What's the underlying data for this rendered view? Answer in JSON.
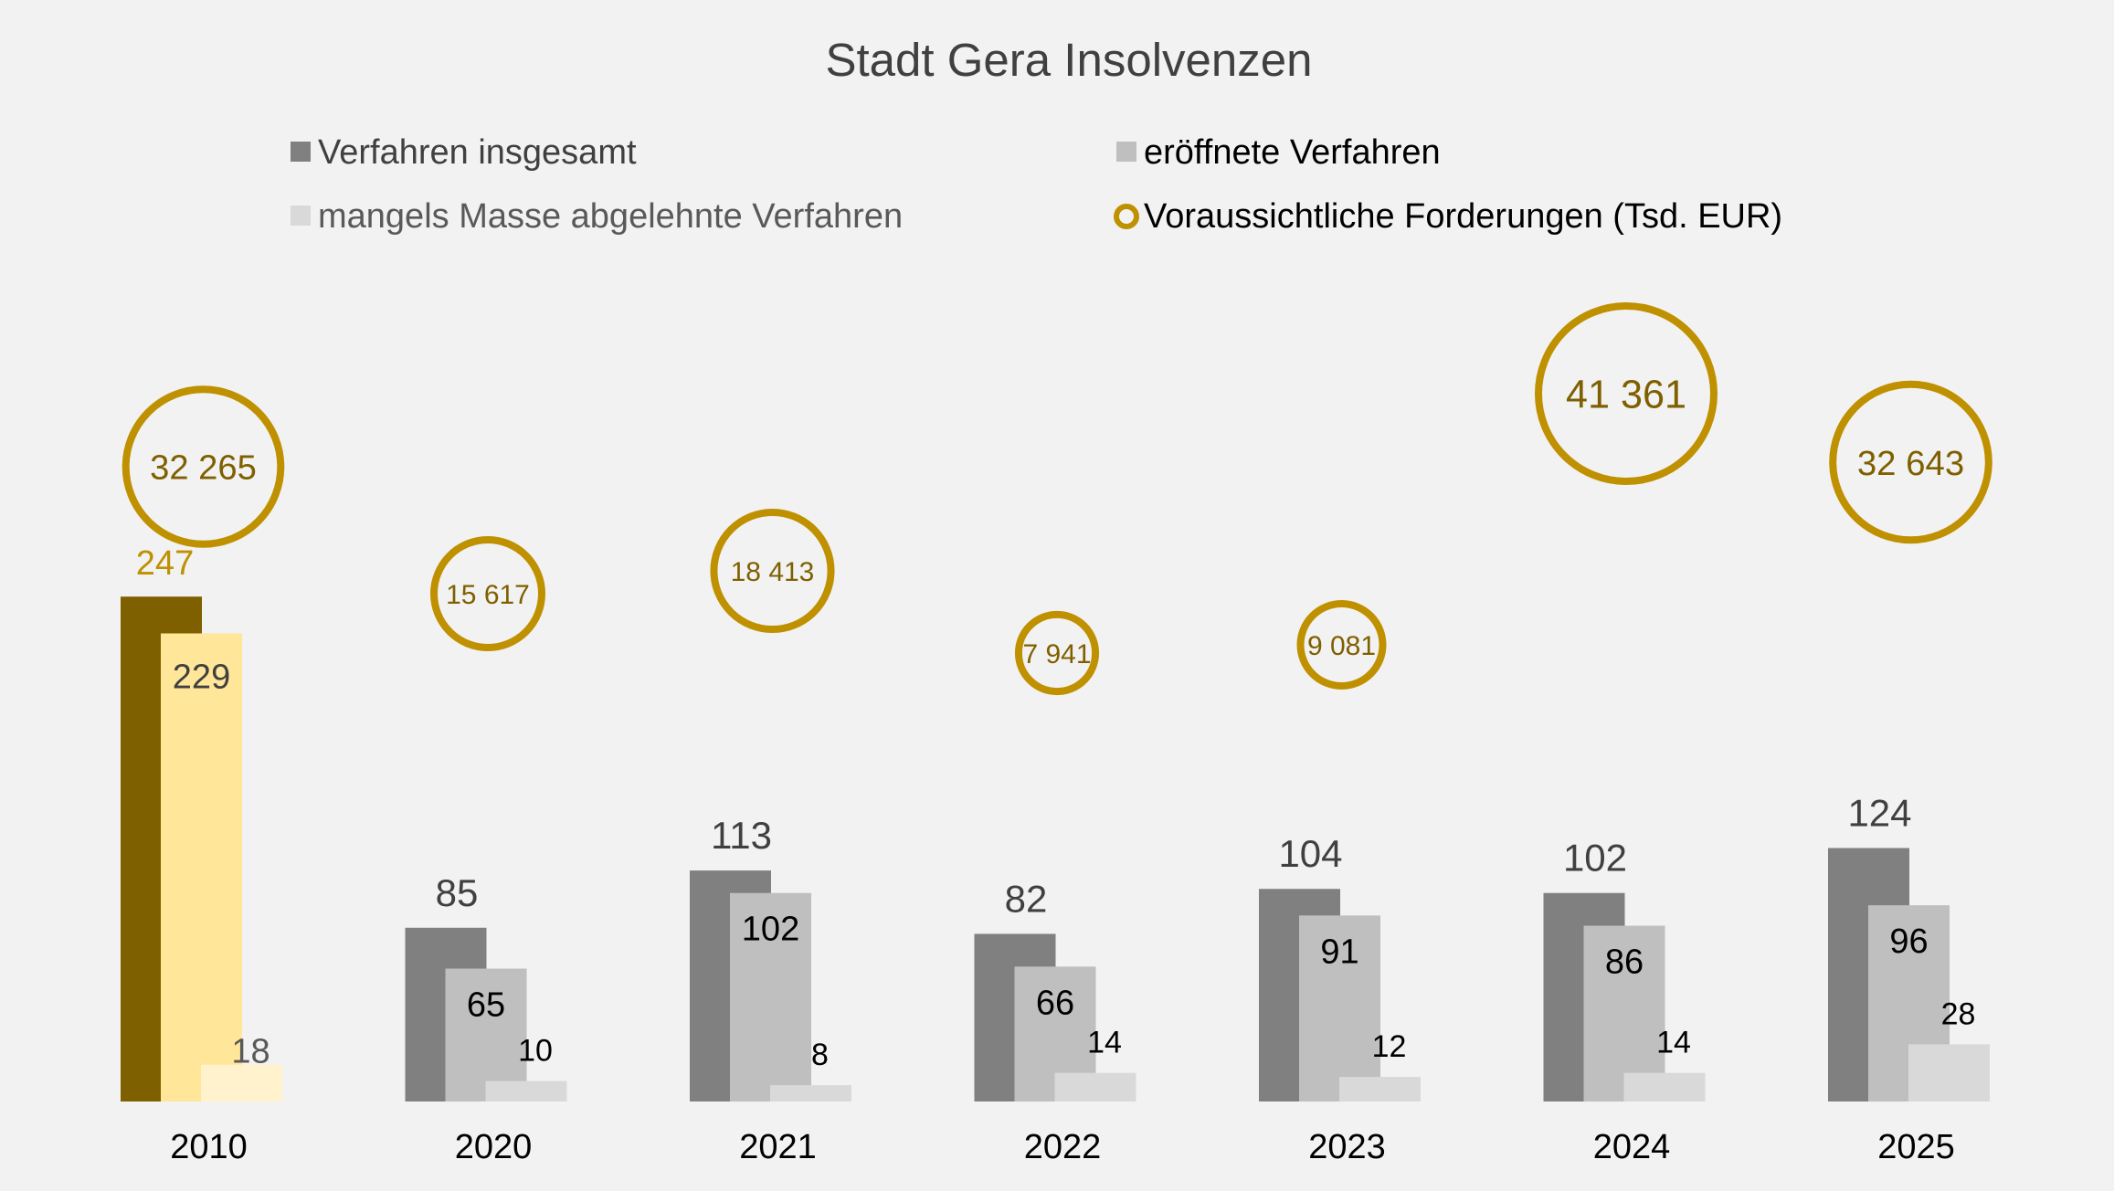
{
  "chart_data": {
    "type": "bar",
    "title": "Stadt Gera Insolvenzen",
    "categories": [
      "2010",
      "2020",
      "2021",
      "2022",
      "2023",
      "2024",
      "2025"
    ],
    "series": [
      {
        "name": "Verfahren insgesamt",
        "values": [
          247,
          85,
          113,
          82,
          104,
          102,
          124
        ]
      },
      {
        "name": "eröffnete Verfahren",
        "values": [
          229,
          65,
          102,
          66,
          91,
          86,
          96
        ]
      },
      {
        "name": "mangels Masse abgelehnte Verfahren",
        "values": [
          18,
          10,
          8,
          14,
          12,
          14,
          28
        ]
      }
    ],
    "bubble_series": {
      "name": "Voraussichtliche Forderungen (Tsd. EUR)",
      "values": [
        32265,
        15617,
        18413,
        7941,
        9081,
        41361,
        32643
      ],
      "labels": [
        "32 265",
        "15 617",
        "18 413",
        "7 941",
        "9 081",
        "41 361",
        "32 643"
      ]
    },
    "legend_placement": "top",
    "grid": false,
    "highlight_category": "2010",
    "colors": {
      "total": "#808080",
      "opened": "#bfbfbf",
      "rejected": "#d9d9d9",
      "bubble": "#bf9000",
      "bubble_text": "#7f6000",
      "highlight_total": "#7f6000",
      "highlight_opened": "#ffe699",
      "highlight_rejected": "#fff2cc",
      "highlight_label_total": "#bf9000",
      "label_dark": "#404040"
    }
  }
}
